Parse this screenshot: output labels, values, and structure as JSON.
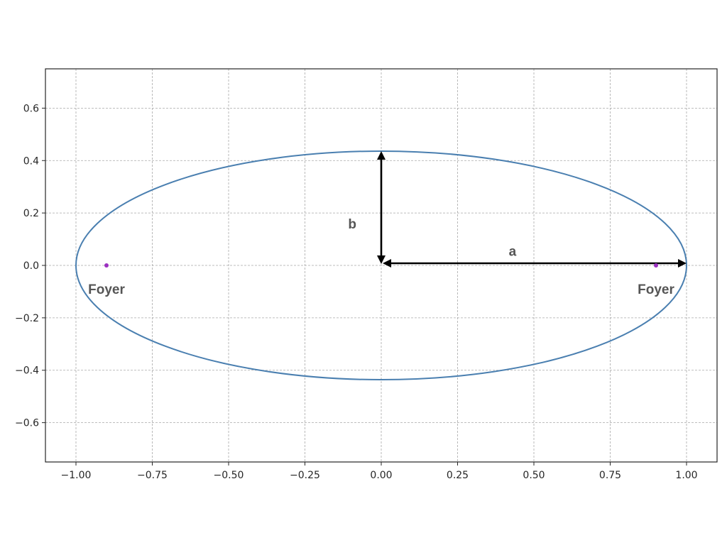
{
  "chart_data": {
    "type": "line",
    "title": "",
    "xlabel": "",
    "ylabel": "",
    "xlim": [
      -1.1,
      1.1
    ],
    "ylim": [
      -0.75,
      0.75
    ],
    "grid": true,
    "x_ticks": [
      -1.0,
      -0.75,
      -0.5,
      -0.25,
      0.0,
      0.25,
      0.5,
      0.75,
      1.0
    ],
    "x_tick_labels": [
      "−1.00",
      "−0.75",
      "−0.50",
      "−0.25",
      "0.00",
      "0.25",
      "0.50",
      "0.75",
      "1.00"
    ],
    "y_ticks": [
      0.6,
      0.4,
      0.2,
      0.0,
      -0.2,
      -0.4,
      -0.6
    ],
    "y_tick_labels": [
      "0.6",
      "0.4",
      "0.2",
      "0.0",
      "−0.2",
      "−0.4",
      "−0.6"
    ],
    "series": [
      {
        "kind": "ellipse",
        "center": [
          0,
          0
        ],
        "semi_major_axis": 1.0,
        "semi_minor_axis": 0.436,
        "color": "#4a7fb0"
      }
    ],
    "points": [
      {
        "x": -0.9,
        "y": 0.0,
        "color": "#9b30c0"
      },
      {
        "x": 0.9,
        "y": 0.0,
        "color": "#9b30c0"
      }
    ],
    "annotations": [
      {
        "text": "Foyer",
        "x": -0.9,
        "y": -0.09
      },
      {
        "text": "Foyer",
        "x": 0.9,
        "y": -0.09
      },
      {
        "text": "a",
        "x": 0.43,
        "y": 0.055
      },
      {
        "text": "b",
        "x": -0.095,
        "y": 0.16
      }
    ],
    "arrows": [
      {
        "label": "a",
        "from": [
          0.0,
          0.0
        ],
        "to": [
          1.0,
          0.0
        ],
        "style": "double"
      },
      {
        "label": "b",
        "from": [
          0.0,
          0.0
        ],
        "to": [
          0.0,
          0.436
        ],
        "style": "double"
      }
    ]
  },
  "colors": {
    "grid": "#a8a8a8",
    "axes": "#262626",
    "ellipse": "#4a7fb0",
    "focus": "#9b30c0",
    "arrow": "#000000"
  }
}
